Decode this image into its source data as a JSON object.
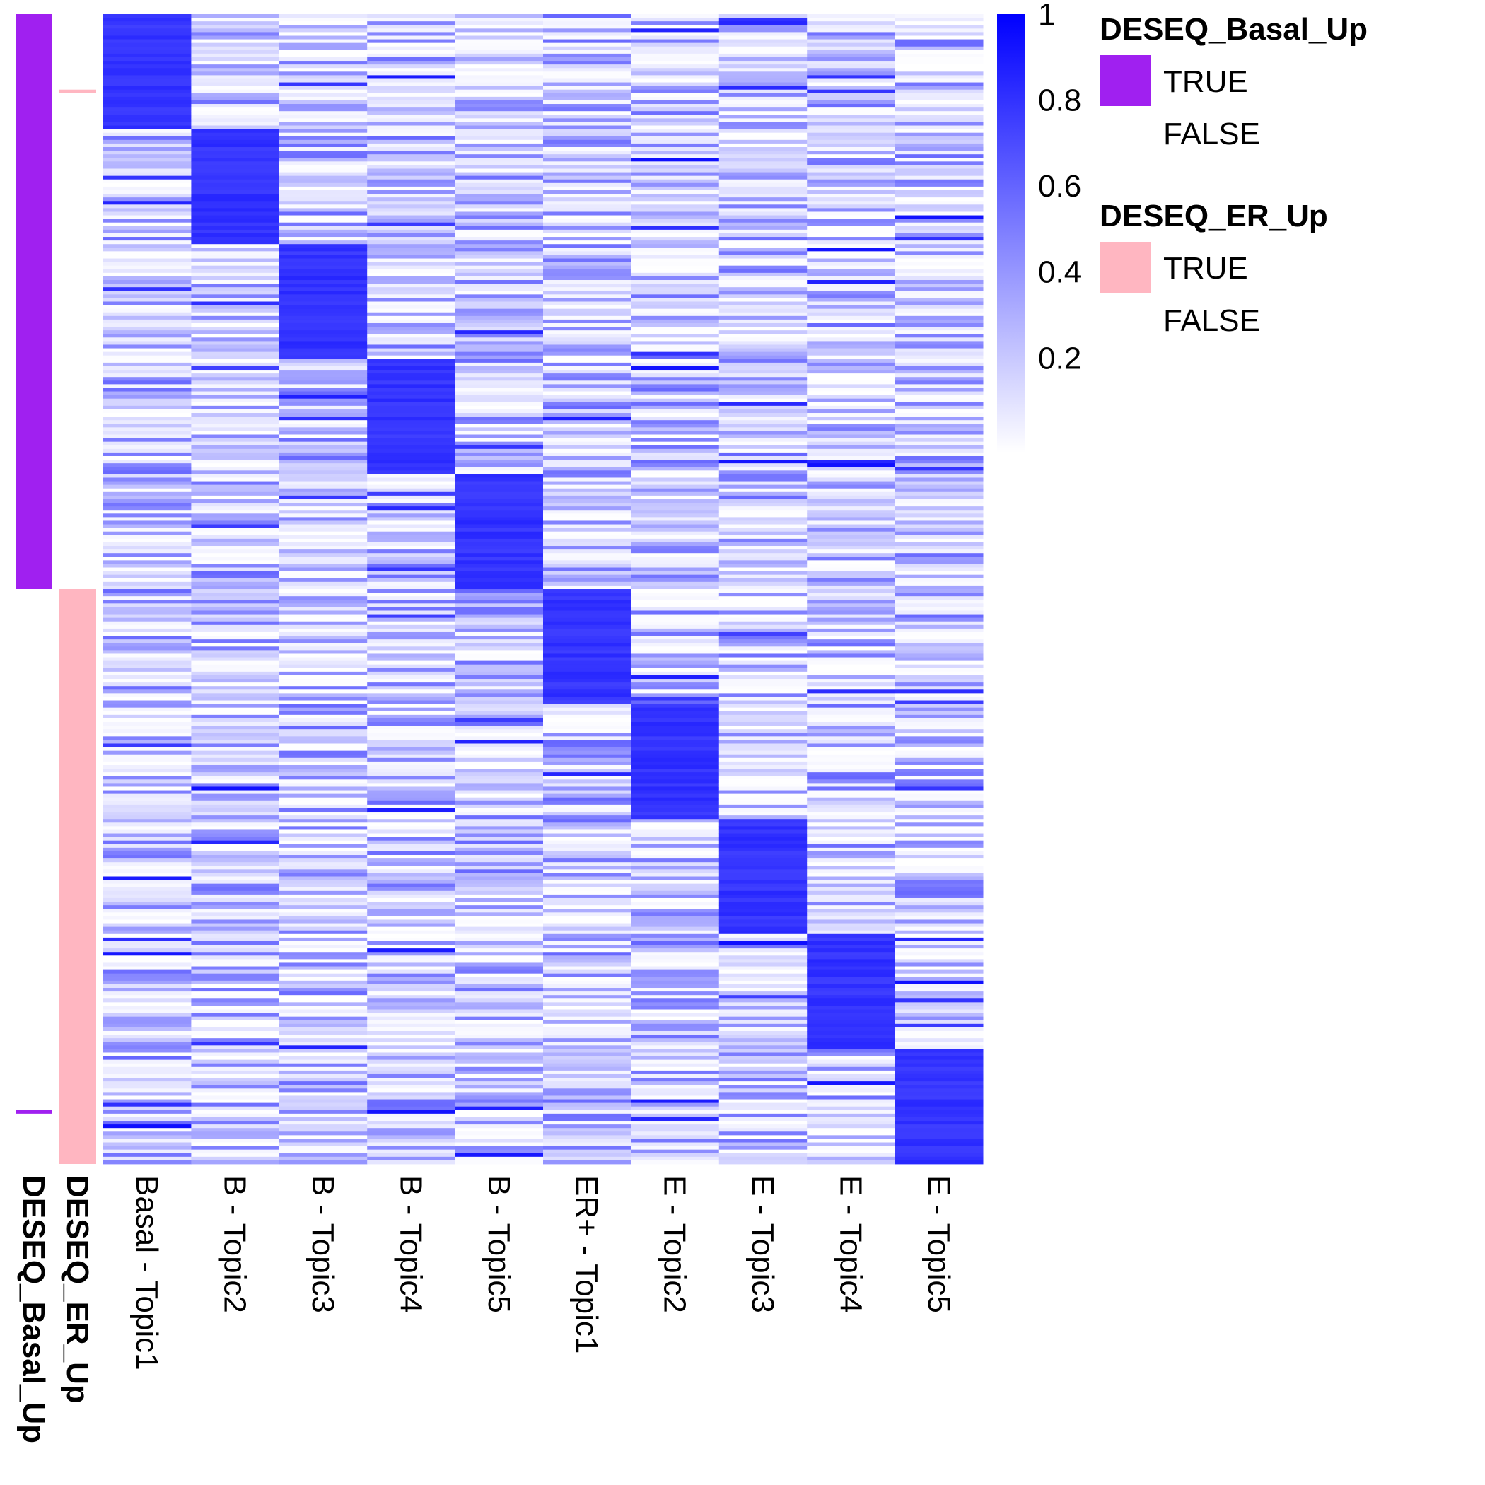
{
  "chart_data": {
    "type": "heatmap",
    "color_scale": {
      "low": "#ffffff",
      "high": "#0000ff",
      "min": 0,
      "max": 1,
      "ticks": [
        "1",
        "0.8",
        "0.6",
        "0.4",
        "0.2"
      ],
      "tick_values": [
        1,
        0.8,
        0.6,
        0.4,
        0.2
      ]
    },
    "columns": [
      "Basal - Topic1",
      "B - Topic2",
      "B - Topic3",
      "B - Topic4",
      "B - Topic5",
      "ER+ - Topic1",
      "E - Topic2",
      "E - Topic3",
      "E - Topic4",
      "E - Topic5"
    ],
    "rows_per_block": 32,
    "block_count": 10,
    "block_high_value": 0.85,
    "background_value_range": [
      0,
      0.6
    ],
    "annotations": [
      {
        "name": "DESEQ_Basal_Up",
        "color_true": "#a020f0",
        "true_row_ranges": [
          [
            0,
            160
          ],
          [
            305,
            306
          ]
        ]
      },
      {
        "name": "DESEQ_ER_Up",
        "color_true": "#ffb6c1",
        "true_row_ranges": [
          [
            21,
            22
          ],
          [
            160,
            320
          ]
        ]
      }
    ],
    "legend": [
      {
        "title": "DESEQ_Basal_Up",
        "entries": [
          {
            "label": "TRUE",
            "color": "#a020f0"
          },
          {
            "label": "FALSE",
            "color": "#ffffff"
          }
        ]
      },
      {
        "title": "DESEQ_ER_Up",
        "entries": [
          {
            "label": "TRUE",
            "color": "#ffb6c1"
          },
          {
            "label": "FALSE",
            "color": "#ffffff"
          }
        ]
      }
    ],
    "legend_placement": "right"
  }
}
